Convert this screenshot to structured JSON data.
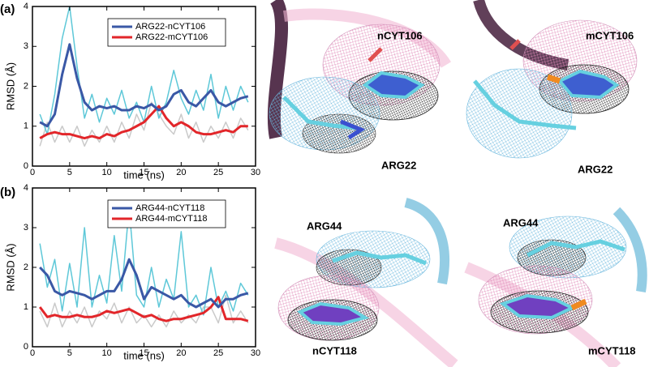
{
  "chart_data": [
    {
      "type": "line",
      "xlabel": "time (ns)",
      "ylabel": "RMSD (Å)",
      "x": [
        1,
        2,
        3,
        4,
        5,
        6,
        7,
        8,
        9,
        10,
        11,
        12,
        13,
        14,
        15,
        16,
        17,
        18,
        19,
        20,
        21,
        22,
        23,
        24,
        25,
        26,
        27,
        28,
        29
      ],
      "xlim": [
        0,
        30
      ],
      "xticks": [
        0,
        5,
        10,
        15,
        20,
        25,
        30
      ],
      "ylim": [
        0,
        4
      ],
      "yticks": [
        0,
        1,
        2,
        3,
        4
      ],
      "legend": "upper right",
      "series": [
        {
          "name": "ARG22-nCYT106",
          "color": "#3a58a6",
          "values": [
            1.1,
            1.0,
            1.3,
            2.3,
            3.05,
            2.2,
            1.6,
            1.4,
            1.5,
            1.45,
            1.5,
            1.4,
            1.4,
            1.5,
            1.45,
            1.55,
            1.4,
            1.5,
            1.8,
            1.9,
            1.6,
            1.5,
            1.7,
            1.9,
            1.6,
            1.5,
            1.6,
            1.7,
            1.75
          ]
        },
        {
          "name": "ARG22-mCYT106",
          "color": "#e2262a",
          "values": [
            0.7,
            0.8,
            0.85,
            0.8,
            0.8,
            0.75,
            0.7,
            0.75,
            0.7,
            0.8,
            0.75,
            0.85,
            0.9,
            1.0,
            1.1,
            1.3,
            1.5,
            1.2,
            1.0,
            1.1,
            1.0,
            0.85,
            0.8,
            0.8,
            0.85,
            0.9,
            0.85,
            1.0,
            1.0
          ]
        },
        {
          "color": "#5ec8d8",
          "values": [
            1.3,
            0.8,
            1.8,
            3.2,
            4.0,
            2.5,
            1.2,
            1.8,
            1.1,
            1.7,
            1.3,
            1.9,
            1.2,
            1.6,
            1.1,
            2.0,
            1.2,
            1.6,
            2.4,
            1.7,
            1.3,
            1.9,
            1.4,
            2.3,
            1.2,
            2.0,
            1.4,
            2.0,
            1.6
          ]
        },
        {
          "color": "#cacaca",
          "values": [
            0.5,
            1.1,
            0.6,
            1.0,
            0.6,
            1.0,
            0.5,
            0.9,
            0.6,
            1.0,
            0.6,
            1.1,
            0.7,
            1.3,
            0.9,
            1.6,
            1.3,
            1.0,
            0.8,
            1.3,
            0.7,
            1.1,
            0.6,
            1.0,
            0.7,
            1.1,
            0.7,
            1.2,
            0.9
          ]
        }
      ]
    },
    {
      "type": "line",
      "xlabel": "time (ns)",
      "ylabel": "RMSD (Å)",
      "x": [
        1,
        2,
        3,
        4,
        5,
        6,
        7,
        8,
        9,
        10,
        11,
        12,
        13,
        14,
        15,
        16,
        17,
        18,
        19,
        20,
        21,
        22,
        23,
        24,
        25,
        26,
        27,
        28,
        29
      ],
      "xlim": [
        0,
        30
      ],
      "xticks": [
        0,
        5,
        10,
        15,
        20,
        25,
        30
      ],
      "ylim": [
        0,
        4
      ],
      "yticks": [
        0,
        1,
        2,
        3,
        4
      ],
      "legend": "upper right",
      "series": [
        {
          "name": "ARG44-nCYT118",
          "color": "#3a58a6",
          "values": [
            2.0,
            1.8,
            1.4,
            1.3,
            1.4,
            1.35,
            1.3,
            1.2,
            1.3,
            1.4,
            1.4,
            1.7,
            2.2,
            1.8,
            1.2,
            1.5,
            1.4,
            1.3,
            1.2,
            1.3,
            1.1,
            1.0,
            1.1,
            1.2,
            1.0,
            1.2,
            1.2,
            1.3,
            1.35
          ]
        },
        {
          "name": "ARG44-mCYT118",
          "color": "#e2262a",
          "values": [
            1.0,
            0.75,
            0.8,
            0.75,
            0.75,
            0.8,
            0.75,
            0.75,
            0.8,
            0.9,
            0.85,
            0.9,
            0.95,
            0.85,
            0.75,
            0.8,
            0.7,
            0.65,
            0.7,
            0.7,
            0.75,
            0.8,
            0.85,
            1.0,
            1.25,
            0.7,
            0.7,
            0.7,
            0.65
          ]
        },
        {
          "color": "#5ec8d8",
          "values": [
            2.6,
            1.5,
            2.2,
            0.9,
            2.1,
            1.0,
            3.0,
            1.0,
            1.8,
            1.1,
            2.8,
            1.4,
            3.5,
            1.3,
            1.0,
            2.0,
            1.0,
            1.7,
            1.2,
            2.9,
            1.0,
            1.3,
            0.8,
            2.0,
            1.0,
            1.4,
            0.9,
            1.6,
            1.3
          ]
        },
        {
          "color": "#cacaca",
          "values": [
            0.9,
            0.5,
            1.1,
            0.5,
            0.9,
            0.6,
            1.0,
            0.5,
            0.9,
            0.7,
            1.1,
            0.6,
            1.0,
            0.6,
            0.8,
            0.5,
            0.8,
            0.5,
            0.9,
            0.6,
            0.8,
            0.6,
            1.0,
            1.0,
            0.6,
            1.3,
            0.6,
            0.9,
            0.6
          ]
        }
      ]
    }
  ],
  "panels": [
    "(a)",
    "(b)"
  ],
  "structures": [
    "nCYT106",
    "ARG22",
    "mCYT106",
    "ARG22",
    "ARG44",
    "nCYT118",
    "ARG44",
    "mCYT118"
  ]
}
